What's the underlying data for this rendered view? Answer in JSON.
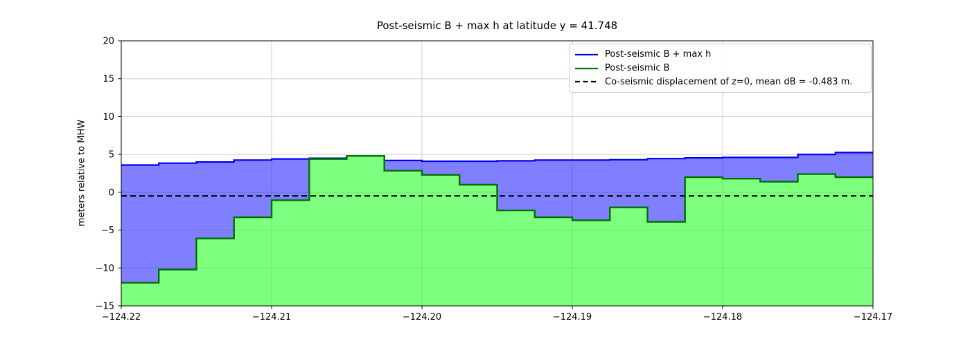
{
  "chart_data": {
    "type": "area",
    "subtype": "step-filled-profile",
    "title": "Post-seismic B + max h at latitude y = 41.748",
    "xlabel": "",
    "ylabel": "meters relative to MHW",
    "xlim": [
      -124.22,
      -124.17
    ],
    "ylim": [
      -15,
      20
    ],
    "grid": true,
    "grid_color": "#d0d0d0",
    "legend_position": "upper right",
    "x_tick_values": [
      -124.22,
      -124.21,
      -124.2,
      -124.19,
      -124.18,
      -124.17
    ],
    "x_tick_labels": [
      "−124.22",
      "−124.21",
      "−124.20",
      "−124.19",
      "−124.18",
      "−124.17"
    ],
    "y_tick_values": [
      20,
      15,
      10,
      5,
      0,
      -5,
      -10,
      -15
    ],
    "y_tick_labels": [
      "20",
      "15",
      "10",
      "5",
      "0",
      "−5",
      "−10",
      "−15"
    ],
    "cell_width_deg": 0.0025,
    "x_edges": [
      -124.22,
      -124.2175,
      -124.215,
      -124.2125,
      -124.21,
      -124.2075,
      -124.205,
      -124.2025,
      -124.2,
      -124.1975,
      -124.195,
      -124.1925,
      -124.19,
      -124.1875,
      -124.185,
      -124.1825,
      -124.18,
      -124.1775,
      -124.175,
      -124.1725,
      -124.17
    ],
    "series": [
      {
        "name": "Post-seismic B + max h",
        "line_color": "#0000ee",
        "fill_color": "rgba(0,0,255,0.5)",
        "values": [
          3.6,
          3.85,
          4.0,
          4.25,
          4.4,
          4.5,
          4.8,
          4.2,
          4.1,
          4.1,
          4.15,
          4.25,
          4.25,
          4.3,
          4.45,
          4.55,
          4.6,
          4.6,
          5.0,
          5.25
        ]
      },
      {
        "name": "Post-seismic B",
        "line_color": "#007000",
        "fill_color": "rgba(0,255,0,0.5)",
        "values": [
          -11.95,
          -10.2,
          -6.1,
          -3.3,
          -1.05,
          4.4,
          4.8,
          2.85,
          2.3,
          1.0,
          -2.4,
          -3.3,
          -3.7,
          -2.0,
          -3.9,
          2.0,
          1.8,
          1.4,
          2.4,
          2.0
        ]
      }
    ],
    "reference_line": {
      "name": "Co-seismic displacement of z=0, mean dB = -0.483 m.",
      "y": -0.483,
      "style": "dashed",
      "color": "#000000"
    }
  }
}
